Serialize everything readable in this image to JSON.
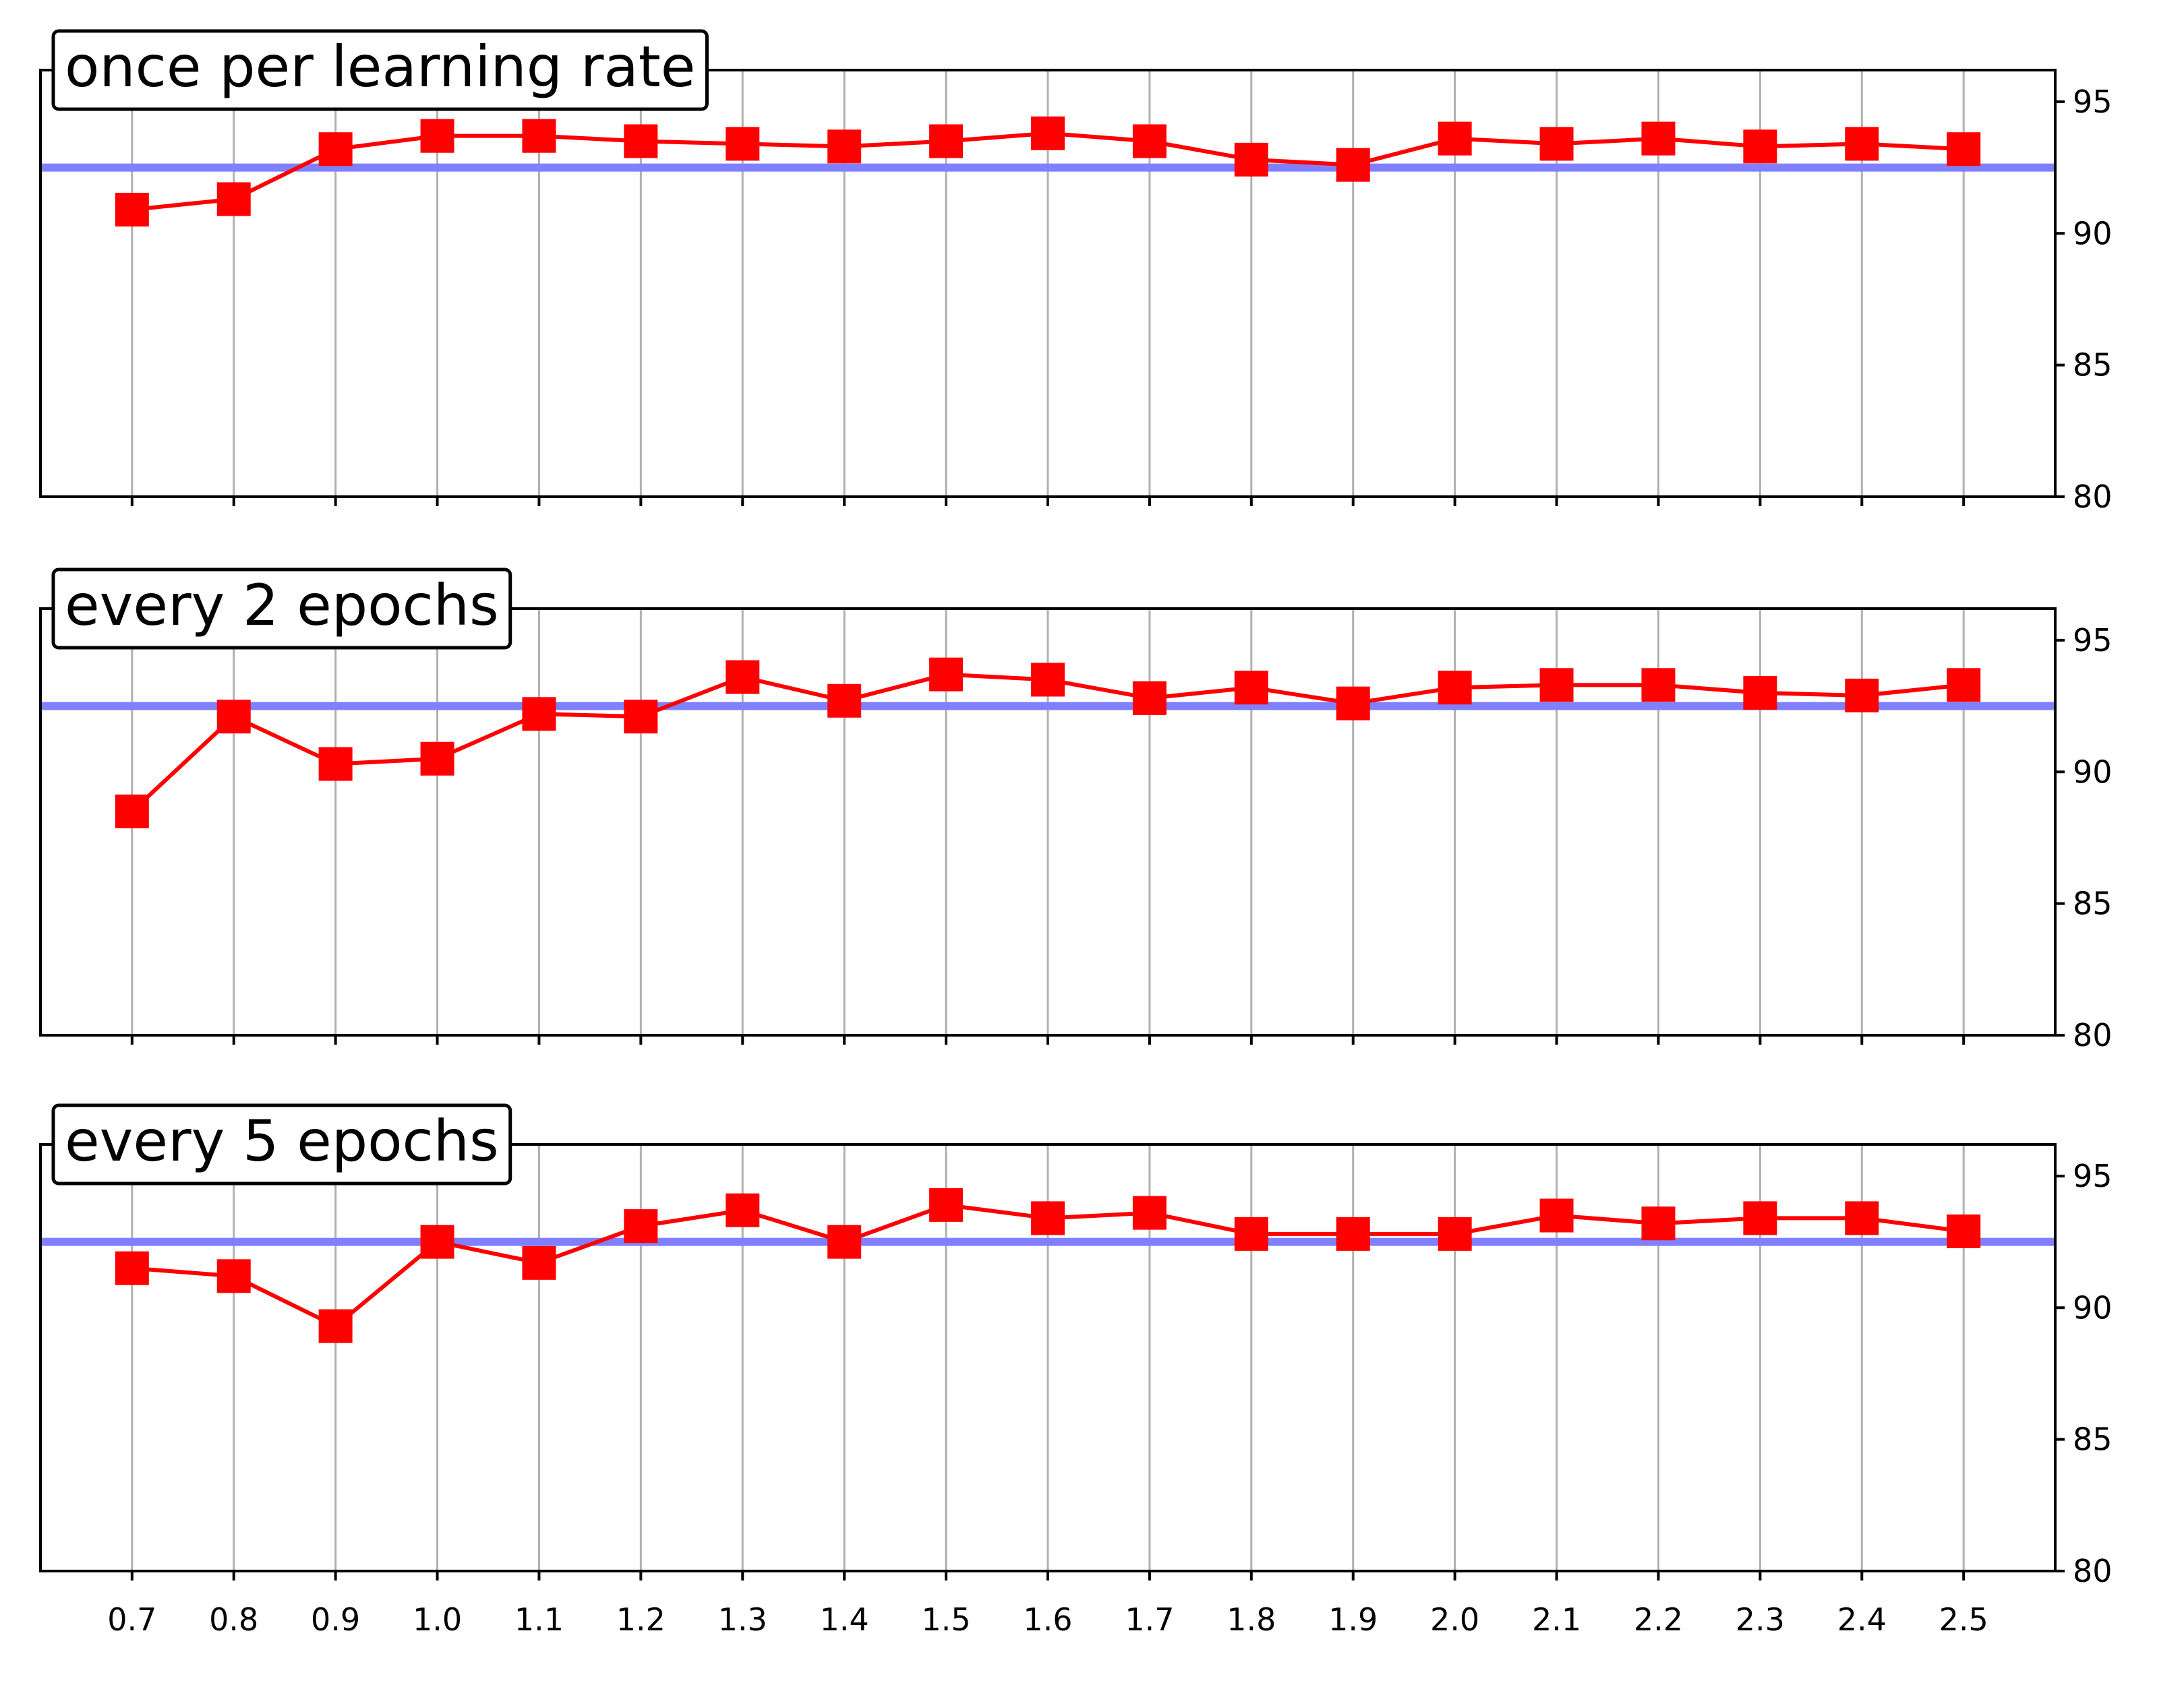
{
  "chart_data": [
    {
      "type": "line",
      "title": "once per learning rate",
      "series": [
        {
          "color": "#ff0000",
          "values": [
            90.9,
            91.3,
            93.2,
            93.7,
            93.7,
            93.5,
            93.4,
            93.3,
            93.5,
            93.8,
            93.5,
            92.8,
            92.6,
            93.6,
            93.4,
            93.6,
            93.3,
            93.4,
            93.2
          ]
        }
      ],
      "hline": {
        "value": 92.5,
        "color": "#8080ff"
      },
      "ylim": [
        80,
        96.2
      ],
      "yticks": [
        80,
        85,
        90,
        95
      ],
      "grid": true
    },
    {
      "type": "line",
      "title": "every 2 epochs",
      "series": [
        {
          "color": "#ff0000",
          "values": [
            88.5,
            92.1,
            90.3,
            90.5,
            92.2,
            92.1,
            93.6,
            92.7,
            93.7,
            93.5,
            92.8,
            93.2,
            92.6,
            93.2,
            93.3,
            93.3,
            93.0,
            92.9,
            93.3
          ]
        }
      ],
      "hline": {
        "value": 92.5,
        "color": "#8080ff"
      },
      "ylim": [
        80,
        96.2
      ],
      "yticks": [
        80,
        85,
        90,
        95
      ],
      "grid": true
    },
    {
      "type": "line",
      "title": "every 5 epochs",
      "categories": [
        "0.7",
        "0.8",
        "0.9",
        "1.0",
        "1.1",
        "1.2",
        "1.3",
        "1.4",
        "1.5",
        "1.6",
        "1.7",
        "1.8",
        "1.9",
        "2.0",
        "2.1",
        "2.2",
        "2.3",
        "2.4",
        "2.5"
      ],
      "series": [
        {
          "color": "#ff0000",
          "values": [
            91.5,
            91.2,
            89.3,
            92.5,
            91.7,
            93.1,
            93.7,
            92.5,
            93.9,
            93.4,
            93.6,
            92.8,
            92.8,
            92.8,
            93.5,
            93.2,
            93.4,
            93.4,
            92.9
          ]
        }
      ],
      "hline": {
        "value": 92.5,
        "color": "#8080ff"
      },
      "ylim": [
        80,
        96.2
      ],
      "yticks": [
        80,
        85,
        90,
        95
      ],
      "grid": true
    }
  ]
}
